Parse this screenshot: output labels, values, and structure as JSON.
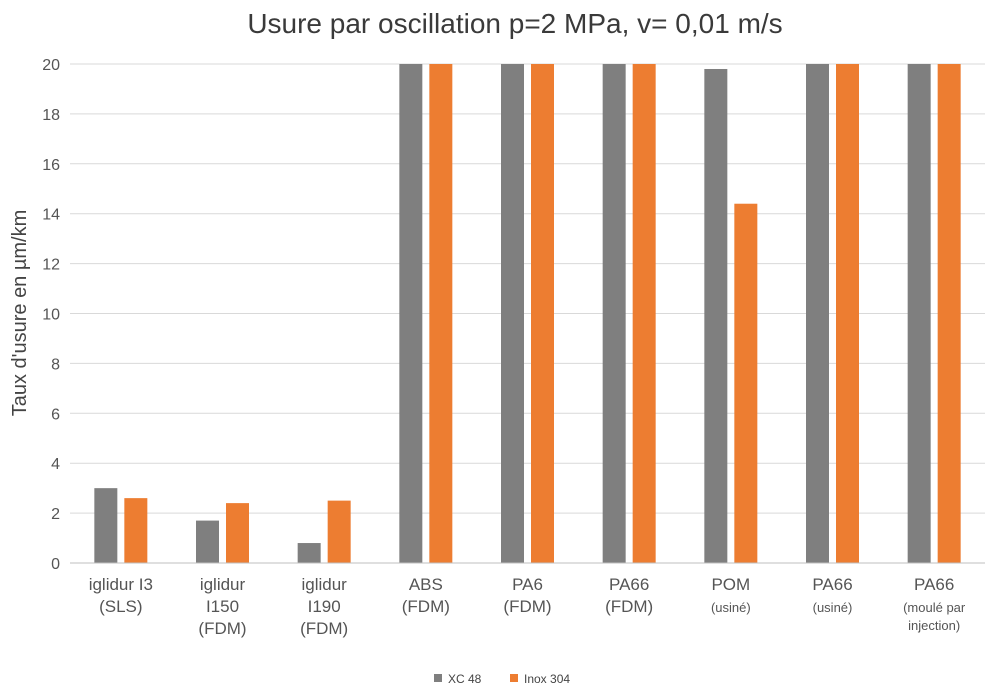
{
  "chart_data": {
    "type": "bar",
    "title": "Usure par oscillation p=2 MPa,  v= 0,01 m/s",
    "xlabel": "",
    "ylabel": "Taux d'usure en µm/km",
    "ylim": [
      0,
      20
    ],
    "yticks": [
      "0",
      "2",
      "4",
      "6",
      "8",
      "10",
      "12",
      "14",
      "16",
      "18",
      "20"
    ],
    "grid": true,
    "legend_position": "bottom",
    "categories": [
      [
        "iglidur I3",
        "(SLS)"
      ],
      [
        "iglidur",
        "I150",
        "(FDM)"
      ],
      [
        "iglidur",
        "I190",
        "(FDM)"
      ],
      [
        "ABS",
        "(FDM)"
      ],
      [
        "PA6",
        "(FDM)"
      ],
      [
        "PA66",
        "(FDM)"
      ],
      [
        "POM",
        "(usiné)"
      ],
      [
        "PA66",
        "(usiné)"
      ],
      [
        "PA66",
        "(moulé par",
        "injection)"
      ]
    ],
    "series": [
      {
        "name": "XC 48",
        "color": "#7f7f7f",
        "values": [
          3.0,
          1.7,
          0.8,
          20,
          20,
          20,
          19.8,
          20,
          20
        ]
      },
      {
        "name": "Inox 304",
        "color": "#ed7d31",
        "values": [
          2.6,
          2.4,
          2.5,
          20,
          20,
          20,
          14.4,
          20,
          20
        ]
      }
    ]
  }
}
